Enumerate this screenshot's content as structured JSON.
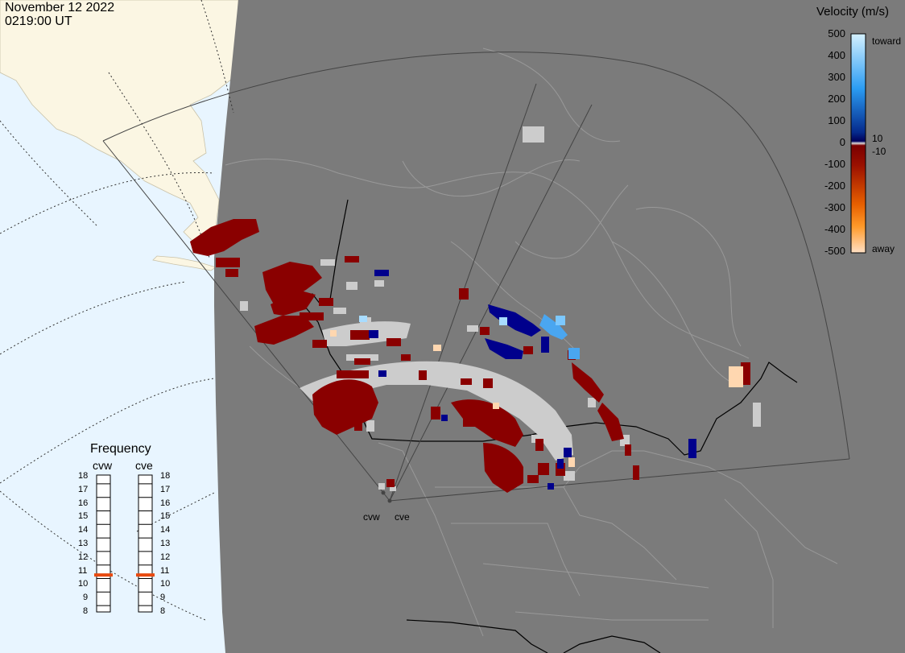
{
  "header": {
    "date": "November 12 2022",
    "time": "0219:00 UT"
  },
  "colorbar": {
    "title": "Velocity (m/s)",
    "ticks": [
      "500",
      "400",
      "300",
      "200",
      "100",
      "0",
      "-100",
      "-200",
      "-300",
      "-400",
      "-500"
    ],
    "side_labels": {
      "toward": "toward",
      "away": "away",
      "pos_threshold": "10",
      "neg_threshold": "-10"
    },
    "colors": [
      "#cfeeff",
      "#a6dcff",
      "#6cc4ff",
      "#2b9cf2",
      "#1570d8",
      "#0a4cb0",
      "#052a8c",
      "#00005a",
      "#8a0000",
      "#a51b00",
      "#c93a00",
      "#e85f00",
      "#ff8b1a",
      "#ffb35e",
      "#ffd7b0"
    ]
  },
  "frequency": {
    "title": "Frequency",
    "radars": [
      "cvw",
      "cve"
    ],
    "ticks": [
      "18",
      "17",
      "16",
      "15",
      "14",
      "13",
      "12",
      "11",
      "10",
      "9",
      "8"
    ],
    "cvw_mhz": 10.7,
    "cve_mhz": 10.7,
    "marker_color": "#e84a10"
  },
  "map": {
    "radar_labels": [
      "cvw",
      "cve"
    ],
    "colors": {
      "ocean": "#e8f5ff",
      "land_sunlit": "#fbf6e3",
      "night": "#7b7b7b",
      "border": "#000000",
      "lines": "#9a9a9a",
      "no_scatter": "#cccccc",
      "away_dark": "#8a0000",
      "toward_dark": "#00008c",
      "toward_light": "#4aa6f0"
    }
  }
}
